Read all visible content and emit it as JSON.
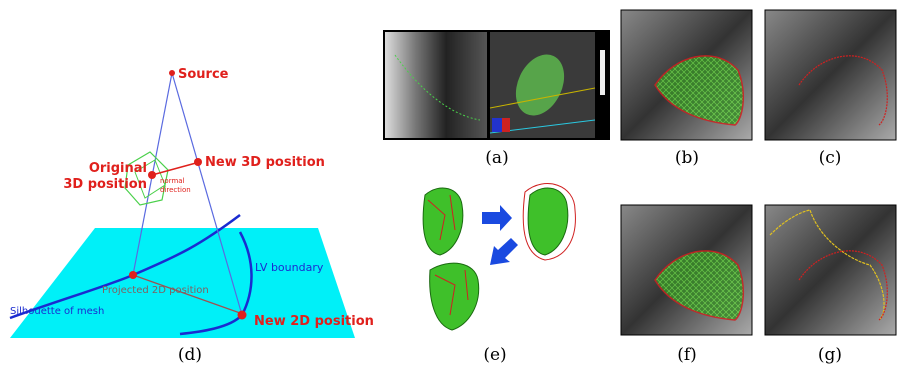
{
  "panel_d": {
    "source": "Source",
    "original": [
      "Original",
      "3D position"
    ],
    "normal": [
      "normal",
      "direction"
    ],
    "new3d": "New 3D position",
    "lv": "LV boundary",
    "projected": "Projected 2D position",
    "silhouette": "Silhouette of mesh",
    "new2d": "New 2D position"
  },
  "captions": {
    "a": "(a)",
    "b": "(b)",
    "c": "(c)",
    "d": "(d)",
    "e": "(e)",
    "f": "(f)",
    "g": "(g)"
  }
}
